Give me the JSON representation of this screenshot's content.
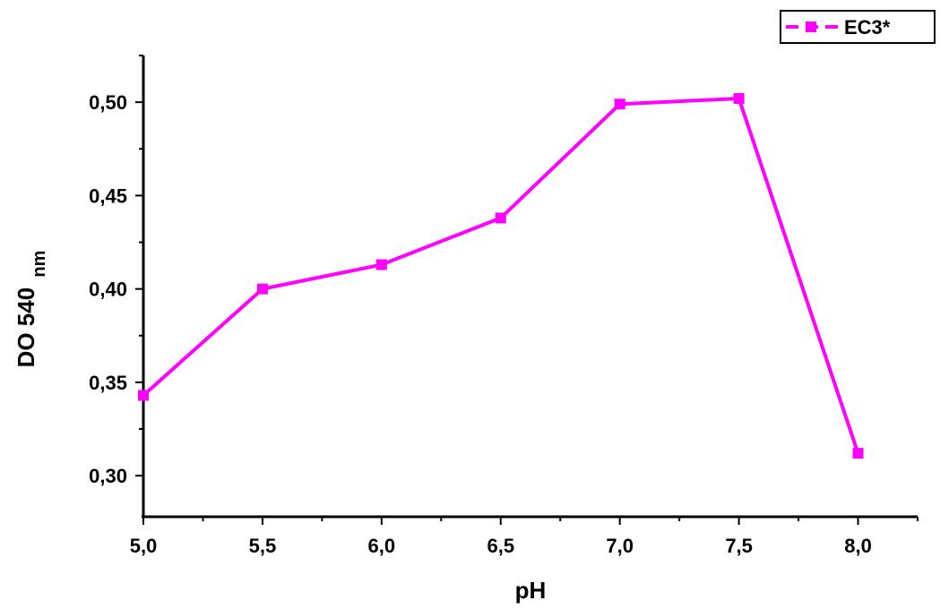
{
  "chart_data": {
    "type": "line",
    "xlabel": "pH",
    "ylabel": "DO 540",
    "ylabel_subscript": "nm",
    "x": [
      5.0,
      5.5,
      6.0,
      6.5,
      7.0,
      7.5,
      8.0
    ],
    "series": [
      {
        "name": "EC3*",
        "color": "#ff00ff",
        "marker": "square",
        "values": [
          0.343,
          0.4,
          0.413,
          0.438,
          0.499,
          0.502,
          0.312
        ]
      }
    ],
    "xlim": [
      5.0,
      8.25
    ],
    "ylim": [
      0.278,
      0.525
    ],
    "x_ticks": [
      5.0,
      5.5,
      6.0,
      6.5,
      7.0,
      7.5,
      8.0
    ],
    "x_tick_labels": [
      "5,0",
      "5,5",
      "6,0",
      "6,5",
      "7,0",
      "7,5",
      "8,0"
    ],
    "y_ticks": [
      0.3,
      0.35,
      0.4,
      0.45,
      0.5
    ],
    "y_tick_labels": [
      "0,30",
      "0,35",
      "0,40",
      "0,45",
      "0,50"
    ],
    "grid": false,
    "legend_position": "top-right"
  }
}
